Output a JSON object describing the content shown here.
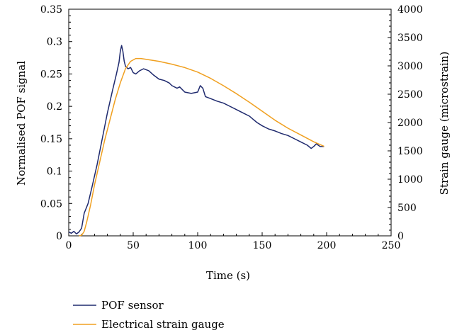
{
  "chart_data": {
    "type": "line",
    "title": "",
    "xlabel": "Time (s)",
    "ylabel": "Normalised POF signal",
    "y2label": "Strain gauge (microstrain)",
    "xlim": [
      0,
      250
    ],
    "ylim": [
      0,
      0.35
    ],
    "y2lim": [
      0,
      4000
    ],
    "x_ticks": [
      "0",
      "50",
      "100",
      "150",
      "200",
      "250"
    ],
    "y_ticks": [
      "0",
      "0.05",
      "0.1",
      "0.15",
      "0.2",
      "0.25",
      "0.3",
      "0.35"
    ],
    "y2_ticks": [
      "0",
      "500",
      "1000",
      "1500",
      "2000",
      "2500",
      "3000",
      "3500",
      "4000"
    ],
    "grid": false,
    "legend_position": "bottom-left",
    "series": [
      {
        "name": "POF sensor",
        "color": "#1f2a6e",
        "axis": "left",
        "points": [
          [
            0,
            0.006
          ],
          [
            2,
            0.004
          ],
          [
            4,
            0.007
          ],
          [
            6,
            0.003
          ],
          [
            8,
            0.006
          ],
          [
            10,
            0.012
          ],
          [
            12,
            0.035
          ],
          [
            15,
            0.05
          ],
          [
            18,
            0.075
          ],
          [
            22,
            0.11
          ],
          [
            26,
            0.15
          ],
          [
            30,
            0.19
          ],
          [
            34,
            0.225
          ],
          [
            37,
            0.25
          ],
          [
            39,
            0.268
          ],
          [
            40,
            0.285
          ],
          [
            41,
            0.294
          ],
          [
            42,
            0.285
          ],
          [
            43,
            0.27
          ],
          [
            44,
            0.262
          ],
          [
            46,
            0.258
          ],
          [
            48,
            0.26
          ],
          [
            50,
            0.252
          ],
          [
            52,
            0.25
          ],
          [
            55,
            0.255
          ],
          [
            58,
            0.258
          ],
          [
            62,
            0.255
          ],
          [
            66,
            0.248
          ],
          [
            70,
            0.242
          ],
          [
            74,
            0.24
          ],
          [
            78,
            0.236
          ],
          [
            80,
            0.232
          ],
          [
            84,
            0.228
          ],
          [
            86,
            0.23
          ],
          [
            90,
            0.222
          ],
          [
            95,
            0.22
          ],
          [
            100,
            0.222
          ],
          [
            102,
            0.232
          ],
          [
            104,
            0.228
          ],
          [
            106,
            0.215
          ],
          [
            110,
            0.212
          ],
          [
            115,
            0.208
          ],
          [
            120,
            0.205
          ],
          [
            125,
            0.2
          ],
          [
            130,
            0.195
          ],
          [
            135,
            0.19
          ],
          [
            140,
            0.185
          ],
          [
            143,
            0.18
          ],
          [
            146,
            0.175
          ],
          [
            150,
            0.17
          ],
          [
            155,
            0.165
          ],
          [
            160,
            0.162
          ],
          [
            165,
            0.158
          ],
          [
            170,
            0.155
          ],
          [
            175,
            0.15
          ],
          [
            180,
            0.145
          ],
          [
            185,
            0.14
          ],
          [
            188,
            0.135
          ],
          [
            190,
            0.138
          ],
          [
            192,
            0.142
          ],
          [
            195,
            0.138
          ],
          [
            198,
            0.138
          ]
        ]
      },
      {
        "name": "Electrical strain gauge",
        "color": "#f0a020",
        "axis": "right",
        "points": [
          [
            8,
            0
          ],
          [
            10,
            10
          ],
          [
            12,
            80
          ],
          [
            14,
            250
          ],
          [
            17,
            550
          ],
          [
            20,
            900
          ],
          [
            24,
            1300
          ],
          [
            28,
            1700
          ],
          [
            32,
            2050
          ],
          [
            36,
            2400
          ],
          [
            40,
            2700
          ],
          [
            44,
            2950
          ],
          [
            48,
            3080
          ],
          [
            52,
            3130
          ],
          [
            56,
            3130
          ],
          [
            60,
            3115
          ],
          [
            70,
            3080
          ],
          [
            80,
            3030
          ],
          [
            90,
            2970
          ],
          [
            100,
            2890
          ],
          [
            110,
            2780
          ],
          [
            120,
            2650
          ],
          [
            130,
            2510
          ],
          [
            140,
            2360
          ],
          [
            150,
            2200
          ],
          [
            160,
            2040
          ],
          [
            170,
            1900
          ],
          [
            180,
            1780
          ],
          [
            190,
            1660
          ],
          [
            198,
            1580
          ]
        ]
      }
    ]
  }
}
